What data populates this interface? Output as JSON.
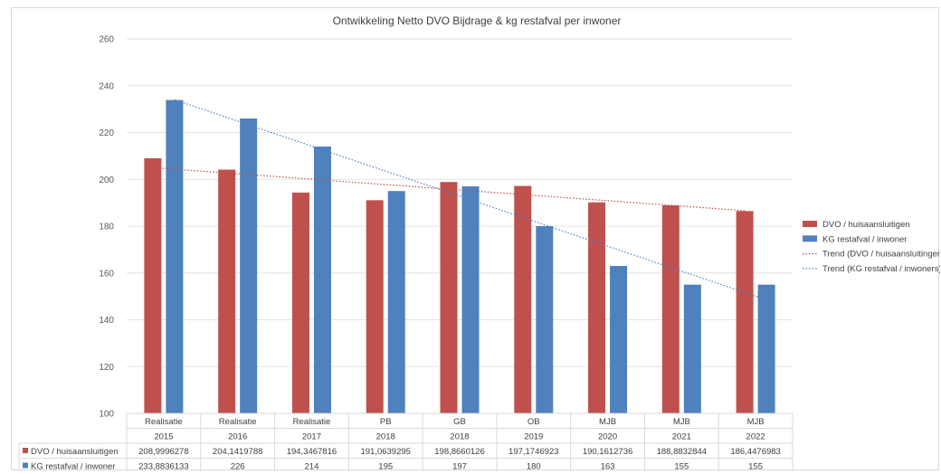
{
  "chart_data": {
    "type": "bar",
    "title": "Ontwikkeling Netto DVO  Bijdrage & kg restafval per inwoner",
    "categories": [
      {
        "label": "Realisatie",
        "year": "2015"
      },
      {
        "label": "Realisatie",
        "year": "2016"
      },
      {
        "label": "Realisatie",
        "year": "2017"
      },
      {
        "label": "PB",
        "year": "2018"
      },
      {
        "label": "GB",
        "year": "2018"
      },
      {
        "label": "OB",
        "year": "2019"
      },
      {
        "label": "MJB",
        "year": "2020"
      },
      {
        "label": "MJB",
        "year": "2021"
      },
      {
        "label": "MJB",
        "year": "2022"
      }
    ],
    "series": [
      {
        "name": "DVO / huisaansluitigen",
        "color": "#c0504d",
        "values": [
          208.9996278,
          204.1419788,
          194.3467816,
          191.0639295,
          198.8660126,
          197.1746923,
          190.1612736,
          188.8832844,
          186.4476983
        ],
        "table_values": [
          "208,9996278",
          "204,1419788",
          "194,3467816",
          "191,0639295",
          "198,8660126",
          "197,1746923",
          "190,1612736",
          "188,8832844",
          "186,4476983"
        ]
      },
      {
        "name": "KG restafval / inwoner",
        "color": "#4f81bd",
        "values": [
          233.8836133,
          226,
          214,
          195,
          197,
          180,
          163,
          155,
          155
        ],
        "table_values": [
          "233,8836133",
          "226",
          "214",
          "195",
          "197",
          "180",
          "163",
          "155",
          "155"
        ]
      }
    ],
    "trendlines": [
      {
        "name": "Trend (DVO / huisaansluitingen)",
        "series_index": 0,
        "color": "#c0504d",
        "start": 205.0,
        "end": 186.6
      },
      {
        "name": "Trend (KG restafval / inwoners)",
        "series_index": 1,
        "color": "#4f81bd",
        "start": 234.0,
        "end": 148.5
      }
    ],
    "y_axis": {
      "min": 100,
      "max": 260,
      "step": 20,
      "ticks": [
        "100",
        "120",
        "140",
        "160",
        "180",
        "200",
        "220",
        "240",
        "260"
      ]
    },
    "grid": true,
    "legend_position": "right",
    "data_table": true
  }
}
